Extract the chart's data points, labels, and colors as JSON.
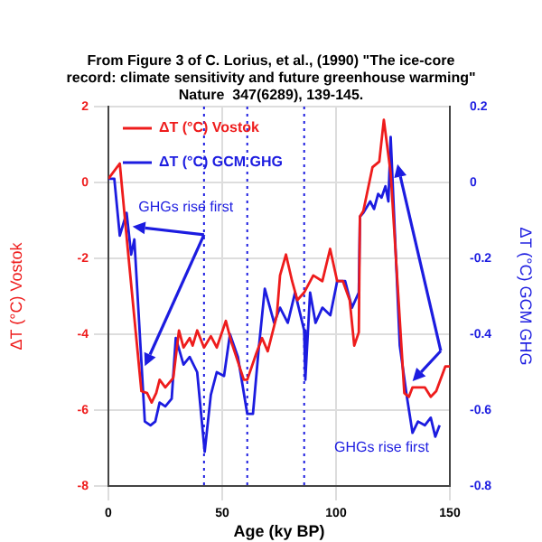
{
  "chart_data": {
    "type": "line",
    "title": "From Figure 3 of C. Lorius, et al., (1990) \"The ice-core record: climate sensitivity and future greenhouse warming\" Nature  347(6289), 139-145.",
    "xlabel": "Age (ky BP)",
    "ylabel": "ΔT (°C) Vostok",
    "y2label": "ΔT (°C) GCM GHG",
    "xlim": [
      0,
      150
    ],
    "xticks": [
      0,
      50,
      100,
      150
    ],
    "ylim": [
      -8,
      2
    ],
    "yticks": [
      -8,
      -6,
      -4,
      -2,
      0,
      2
    ],
    "y2lim": [
      -0.8,
      0.2
    ],
    "y2ticks": [
      -0.8,
      -0.6,
      -0.4,
      -0.2,
      0,
      0.2
    ],
    "grid": true,
    "legend": "top left",
    "marker": "none",
    "line_style": "solid",
    "series": [
      {
        "name": "ΔT (°C) Vostok",
        "color": "#ee1c1c",
        "x": [
          0,
          5,
          8.5,
          14.5,
          17,
          19,
          21,
          22.5,
          25,
          28.5,
          31,
          33,
          35.7,
          37,
          39,
          42,
          45,
          47.6,
          51.6,
          54,
          59.5,
          61,
          65,
          67.5,
          70,
          74,
          75.4,
          78,
          80.7,
          83,
          86,
          90,
          94,
          97.4,
          100.5,
          103,
          106,
          108,
          110,
          110.5,
          112,
          116,
          119,
          121,
          124,
          130,
          132,
          133.6,
          139,
          141.6,
          144,
          148,
          150
        ],
        "values": [
          0.1,
          0.5,
          -1.75,
          -5.5,
          -5.55,
          -5.8,
          -5.55,
          -5.2,
          -5.4,
          -5.15,
          -3.9,
          -4.35,
          -4.1,
          -4.3,
          -3.9,
          -4.35,
          -4.05,
          -4.35,
          -3.65,
          -4.2,
          -5.2,
          -5.2,
          -4.5,
          -4.1,
          -4.45,
          -3.5,
          -2.45,
          -1.9,
          -2.6,
          -3.1,
          -2.9,
          -2.45,
          -2.6,
          -1.75,
          -2.6,
          -2.6,
          -3.1,
          -4.3,
          -3.95,
          -0.9,
          -0.75,
          0.4,
          0.55,
          1.65,
          0.25,
          -5.55,
          -5.65,
          -5.4,
          -5.4,
          -5.65,
          -5.5,
          -4.85,
          -4.85
        ]
      },
      {
        "name": "ΔT (°C) GCM GHG",
        "color": "#1c1ce0",
        "axis": "y2",
        "x": [
          0,
          2.6,
          5,
          8,
          10,
          11.4,
          16,
          18.5,
          20.6,
          22.5,
          25,
          27.8,
          29.6,
          33,
          35.7,
          39,
          42.3,
          45,
          47.6,
          50.8,
          53.4,
          56.9,
          61,
          63.5,
          66,
          68.7,
          72.8,
          75.4,
          78.8,
          82,
          86,
          86.5,
          88.6,
          91,
          94,
          97.5,
          100.5,
          104,
          107,
          110,
          110.5,
          112,
          115,
          116.7,
          118.5,
          120,
          121.7,
          123,
          124,
          128,
          131,
          133.6,
          136,
          139,
          141.6,
          143.6,
          145.5
        ],
        "values": [
          0.01,
          0.01,
          -0.14,
          -0.08,
          -0.19,
          -0.15,
          -0.63,
          -0.64,
          -0.63,
          -0.58,
          -0.59,
          -0.57,
          -0.41,
          -0.48,
          -0.46,
          -0.5,
          -0.71,
          -0.56,
          -0.5,
          -0.51,
          -0.4,
          -0.46,
          -0.61,
          -0.61,
          -0.44,
          -0.28,
          -0.37,
          -0.33,
          -0.37,
          -0.29,
          -0.39,
          -0.52,
          -0.29,
          -0.37,
          -0.33,
          -0.35,
          -0.26,
          -0.26,
          -0.33,
          -0.29,
          -0.09,
          -0.08,
          -0.05,
          -0.07,
          -0.03,
          -0.04,
          -0.01,
          -0.05,
          0.12,
          -0.43,
          -0.56,
          -0.66,
          -0.63,
          -0.64,
          -0.62,
          -0.67,
          -0.64
        ]
      }
    ],
    "ref_lines": [
      {
        "axis": "x",
        "value": 42,
        "color": "#1c1ce0",
        "line_style": "dotted"
      },
      {
        "axis": "x",
        "value": 61,
        "color": "#1c1ce0",
        "line_style": "dotted"
      },
      {
        "axis": "x",
        "value": 86,
        "color": "#1c1ce0",
        "line_style": "dotted"
      }
    ],
    "annotations": [
      "GHGs rise first",
      "GHGs rise first"
    ]
  }
}
